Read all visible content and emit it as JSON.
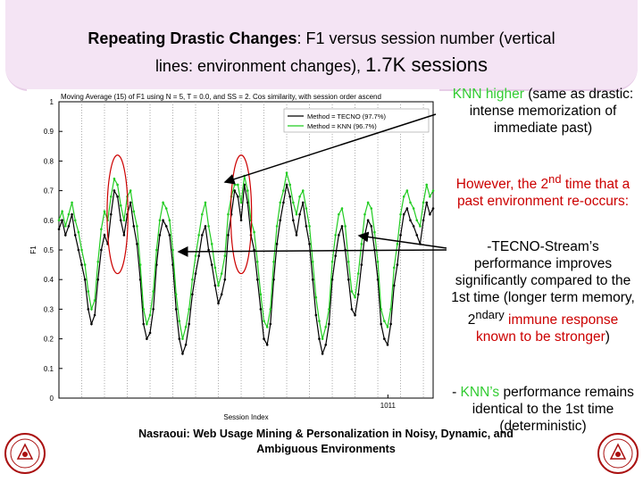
{
  "slide": {
    "title_bold": "Repeating Drastic Changes",
    "title_rest": ": F1 versus session number (vertical",
    "title_line2_a": "lines: environment changes),",
    "title_line2_b": "1.7K sessions",
    "callout1": {
      "a": "KNN higher",
      "b": " (same as drastic: intense memorization of immediate past)"
    },
    "callout2": {
      "a": "However, the 2",
      "sup": "nd",
      "b": " time that a past environment re-occurs:"
    },
    "callout3": {
      "a": "-TECNO-Stream’s performance improves significantly compared to the 1st time (longer term memory, 2",
      "sup": "ndary",
      "b": " immune response known to be stronger",
      "c": ")"
    },
    "callout4": {
      "a": "- ",
      "b": "KNN’s",
      "c": " performance remains identical to the 1st time (deterministic)"
    },
    "footer": "Nasraoui: Web Usage Mining & Personalization in Noisy, Dynamic, and Ambiguous Environments",
    "seal_name": "university-seal-icon"
  },
  "chart_data": {
    "type": "line",
    "title": "Moving Average (15) of F1 using N = 5, T = 0.0, and SS = 2. Cos similarity, with session order ascend",
    "xlabel": "Session Index",
    "ylabel": "F1",
    "xlim": [
      0,
      1150
    ],
    "ylim": [
      0,
      1
    ],
    "yticks": [
      "0",
      "0.1",
      "0.2",
      "0.3",
      "0.4",
      "0.5",
      "0.6",
      "0.7",
      "0.8",
      "0.9",
      "1"
    ],
    "xtick_labels": [
      {
        "x": 1011,
        "label": "1011"
      }
    ],
    "env_changes_x": [
      70,
      140,
      210,
      280,
      350,
      420,
      490,
      560,
      630,
      700,
      770,
      840,
      910,
      980,
      1050,
      1120
    ],
    "legend_position": "top-right",
    "colors": {
      "tecno": "#000000",
      "knn": "#22cc22",
      "circle": "#cc0000",
      "arrow": "#000000"
    },
    "series": [
      {
        "name": "Method = TECNO (97.7%)",
        "x": [
          0,
          10,
          20,
          30,
          40,
          50,
          60,
          70,
          80,
          90,
          100,
          110,
          120,
          130,
          140,
          150,
          160,
          170,
          180,
          190,
          200,
          210,
          220,
          230,
          240,
          250,
          260,
          270,
          280,
          290,
          300,
          310,
          320,
          330,
          340,
          350,
          360,
          370,
          380,
          390,
          400,
          410,
          420,
          430,
          440,
          450,
          460,
          470,
          480,
          490,
          500,
          510,
          520,
          530,
          540,
          550,
          560,
          570,
          580,
          590,
          600,
          610,
          620,
          630,
          640,
          650,
          660,
          670,
          680,
          690,
          700,
          710,
          720,
          730,
          740,
          750,
          760,
          770,
          780,
          790,
          800,
          810,
          820,
          830,
          840,
          850,
          860,
          870,
          880,
          890,
          900,
          910,
          920,
          930,
          940,
          950,
          960,
          970,
          980,
          990,
          1000,
          1010,
          1020,
          1030,
          1040,
          1050,
          1060,
          1070,
          1080,
          1090,
          1100,
          1110,
          1120,
          1130,
          1140,
          1150
        ],
        "y": [
          0.57,
          0.6,
          0.55,
          0.58,
          0.62,
          0.55,
          0.5,
          0.45,
          0.4,
          0.3,
          0.25,
          0.28,
          0.4,
          0.5,
          0.55,
          0.52,
          0.62,
          0.7,
          0.68,
          0.6,
          0.55,
          0.62,
          0.66,
          0.58,
          0.52,
          0.4,
          0.25,
          0.2,
          0.22,
          0.3,
          0.45,
          0.55,
          0.6,
          0.58,
          0.55,
          0.45,
          0.3,
          0.2,
          0.15,
          0.18,
          0.25,
          0.35,
          0.42,
          0.48,
          0.55,
          0.58,
          0.5,
          0.45,
          0.38,
          0.32,
          0.35,
          0.4,
          0.55,
          0.62,
          0.7,
          0.68,
          0.6,
          0.72,
          0.66,
          0.55,
          0.5,
          0.4,
          0.3,
          0.2,
          0.18,
          0.25,
          0.4,
          0.52,
          0.6,
          0.66,
          0.72,
          0.68,
          0.6,
          0.55,
          0.62,
          0.66,
          0.58,
          0.52,
          0.4,
          0.28,
          0.2,
          0.15,
          0.18,
          0.25,
          0.4,
          0.48,
          0.55,
          0.58,
          0.5,
          0.4,
          0.3,
          0.28,
          0.35,
          0.45,
          0.55,
          0.6,
          0.58,
          0.5,
          0.4,
          0.25,
          0.2,
          0.18,
          0.25,
          0.38,
          0.45,
          0.55,
          0.62,
          0.64,
          0.6,
          0.58,
          0.55,
          0.52,
          0.6,
          0.66,
          0.62,
          0.64
        ]
      },
      {
        "name": "Method = KNN   (96.7%)",
        "x": [
          0,
          10,
          20,
          30,
          40,
          50,
          60,
          70,
          80,
          90,
          100,
          110,
          120,
          130,
          140,
          150,
          160,
          170,
          180,
          190,
          200,
          210,
          220,
          230,
          240,
          250,
          260,
          270,
          280,
          290,
          300,
          310,
          320,
          330,
          340,
          350,
          360,
          370,
          380,
          390,
          400,
          410,
          420,
          430,
          440,
          450,
          460,
          470,
          480,
          490,
          500,
          510,
          520,
          530,
          540,
          550,
          560,
          570,
          580,
          590,
          600,
          610,
          620,
          630,
          640,
          650,
          660,
          670,
          680,
          690,
          700,
          710,
          720,
          730,
          740,
          750,
          760,
          770,
          780,
          790,
          800,
          810,
          820,
          830,
          840,
          850,
          860,
          870,
          880,
          890,
          900,
          910,
          920,
          930,
          940,
          950,
          960,
          970,
          980,
          990,
          1000,
          1010,
          1020,
          1030,
          1040,
          1050,
          1060,
          1070,
          1080,
          1090,
          1100,
          1110,
          1120,
          1130,
          1140,
          1150
        ],
        "y": [
          0.6,
          0.63,
          0.58,
          0.62,
          0.66,
          0.6,
          0.56,
          0.5,
          0.45,
          0.36,
          0.3,
          0.33,
          0.46,
          0.57,
          0.63,
          0.6,
          0.68,
          0.74,
          0.72,
          0.65,
          0.6,
          0.68,
          0.7,
          0.63,
          0.58,
          0.45,
          0.3,
          0.25,
          0.28,
          0.36,
          0.5,
          0.6,
          0.66,
          0.64,
          0.6,
          0.5,
          0.35,
          0.26,
          0.2,
          0.24,
          0.3,
          0.4,
          0.48,
          0.55,
          0.62,
          0.66,
          0.58,
          0.52,
          0.44,
          0.38,
          0.42,
          0.48,
          0.62,
          0.68,
          0.72,
          0.72,
          0.66,
          0.75,
          0.7,
          0.6,
          0.56,
          0.46,
          0.35,
          0.26,
          0.24,
          0.3,
          0.46,
          0.58,
          0.66,
          0.7,
          0.76,
          0.72,
          0.66,
          0.62,
          0.68,
          0.7,
          0.64,
          0.58,
          0.46,
          0.34,
          0.26,
          0.2,
          0.24,
          0.3,
          0.46,
          0.55,
          0.62,
          0.64,
          0.58,
          0.46,
          0.36,
          0.34,
          0.42,
          0.52,
          0.62,
          0.66,
          0.64,
          0.56,
          0.46,
          0.3,
          0.26,
          0.24,
          0.3,
          0.44,
          0.52,
          0.62,
          0.68,
          0.7,
          0.66,
          0.64,
          0.6,
          0.58,
          0.66,
          0.72,
          0.68,
          0.7
        ]
      }
    ],
    "circles": [
      {
        "x": 180,
        "y": 0.62,
        "rx": 32,
        "ry": 0.2
      },
      {
        "x": 560,
        "y": 0.62,
        "rx": 32,
        "ry": 0.2
      }
    ]
  }
}
